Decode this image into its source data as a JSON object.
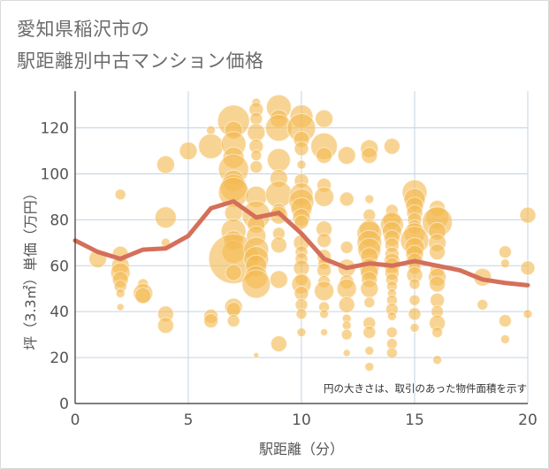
{
  "title_lines": [
    "愛知県稲沢市の",
    "駅距離別中古マンション価格"
  ],
  "chart_data": {
    "type": "scatter",
    "xlabel": "駅距離（分）",
    "ylabel": "坪（3.3㎡）単価（万円）",
    "xlim": [
      0,
      20
    ],
    "ylim": [
      0,
      136
    ],
    "xticks": [
      0,
      5,
      10,
      15,
      20
    ],
    "yticks": [
      0,
      20,
      40,
      60,
      80,
      100,
      120
    ],
    "grid": true,
    "note": "円の大きさは、取引のあった物件面積を示す",
    "colors": {
      "bubble": "#f3b953",
      "line": "#d4705a",
      "grid": "#c5d3e0"
    },
    "bubbles": [
      [
        1,
        63,
        10
      ],
      [
        2,
        91,
        6
      ],
      [
        2,
        65,
        9
      ],
      [
        2,
        60,
        10
      ],
      [
        2,
        57,
        11
      ],
      [
        2,
        54,
        9
      ],
      [
        2,
        51,
        7
      ],
      [
        2,
        48,
        5
      ],
      [
        2,
        42,
        4
      ],
      [
        3,
        52,
        6
      ],
      [
        3,
        48,
        11
      ],
      [
        3,
        47,
        9
      ],
      [
        4,
        104,
        10
      ],
      [
        4,
        81,
        12
      ],
      [
        4,
        70,
        5
      ],
      [
        4,
        39,
        9
      ],
      [
        4,
        34,
        9
      ],
      [
        5,
        110,
        10
      ],
      [
        6,
        119,
        5
      ],
      [
        6,
        112,
        14
      ],
      [
        6,
        38,
        8
      ],
      [
        6,
        36,
        8
      ],
      [
        7,
        123,
        18
      ],
      [
        7,
        119,
        10
      ],
      [
        7,
        113,
        14
      ],
      [
        7,
        107,
        12
      ],
      [
        7,
        102,
        17
      ],
      [
        7,
        97,
        12
      ],
      [
        7,
        94,
        15
      ],
      [
        7,
        92,
        17
      ],
      [
        7,
        83,
        10
      ],
      [
        7,
        75,
        14
      ],
      [
        7,
        71,
        11
      ],
      [
        7,
        66,
        13
      ],
      [
        7,
        63,
        28
      ],
      [
        7,
        57,
        9
      ],
      [
        7,
        42,
        10
      ],
      [
        7,
        41,
        8
      ],
      [
        7,
        36,
        7
      ],
      [
        8,
        131,
        5
      ],
      [
        8,
        128,
        8
      ],
      [
        8,
        124,
        7
      ],
      [
        8,
        118,
        10
      ],
      [
        8,
        112,
        8
      ],
      [
        8,
        108,
        6
      ],
      [
        8,
        103,
        7
      ],
      [
        8,
        90,
        12
      ],
      [
        8,
        82,
        16
      ],
      [
        8,
        78,
        10
      ],
      [
        8,
        73,
        11
      ],
      [
        8,
        67,
        14
      ],
      [
        8,
        63,
        14
      ],
      [
        8,
        60,
        12
      ],
      [
        8,
        55,
        13
      ],
      [
        8,
        52,
        16
      ],
      [
        8,
        21,
        3
      ],
      [
        9,
        129,
        14
      ],
      [
        9,
        124,
        10
      ],
      [
        9,
        120,
        15
      ],
      [
        9,
        106,
        13
      ],
      [
        9,
        98,
        10
      ],
      [
        9,
        91,
        15
      ],
      [
        9,
        84,
        8
      ],
      [
        9,
        82,
        10
      ],
      [
        9,
        74,
        7
      ],
      [
        9,
        69,
        9
      ],
      [
        9,
        54,
        10
      ],
      [
        9,
        26,
        9
      ],
      [
        10,
        125,
        13
      ],
      [
        10,
        120,
        16
      ],
      [
        10,
        115,
        9
      ],
      [
        10,
        111,
        8
      ],
      [
        10,
        104,
        5
      ],
      [
        10,
        97,
        8
      ],
      [
        10,
        91,
        13
      ],
      [
        10,
        88,
        14
      ],
      [
        10,
        85,
        12
      ],
      [
        10,
        81,
        10
      ],
      [
        10,
        79,
        8
      ],
      [
        10,
        70,
        9
      ],
      [
        10,
        66,
        7
      ],
      [
        10,
        63,
        7
      ],
      [
        10,
        59,
        9
      ],
      [
        10,
        54,
        7
      ],
      [
        10,
        52,
        11
      ],
      [
        10,
        48,
        8
      ],
      [
        10,
        43,
        7
      ],
      [
        10,
        39,
        6
      ],
      [
        10,
        31,
        5
      ],
      [
        11,
        124,
        10
      ],
      [
        11,
        112,
        15
      ],
      [
        11,
        108,
        9
      ],
      [
        11,
        95,
        8
      ],
      [
        11,
        90,
        11
      ],
      [
        11,
        76,
        9
      ],
      [
        11,
        71,
        8
      ],
      [
        11,
        64,
        8
      ],
      [
        11,
        61,
        7
      ],
      [
        11,
        58,
        8
      ],
      [
        11,
        53,
        7
      ],
      [
        11,
        49,
        11
      ],
      [
        11,
        42,
        6
      ],
      [
        11,
        39,
        5
      ],
      [
        11,
        31,
        4
      ],
      [
        12,
        108,
        10
      ],
      [
        12,
        89,
        8
      ],
      [
        12,
        68,
        7
      ],
      [
        12,
        59,
        10
      ],
      [
        12,
        53,
        8
      ],
      [
        12,
        50,
        11
      ],
      [
        12,
        43,
        9
      ],
      [
        12,
        37,
        5
      ],
      [
        12,
        34,
        5
      ],
      [
        12,
        30,
        6
      ],
      [
        12,
        22,
        4
      ],
      [
        13,
        111,
        10
      ],
      [
        13,
        108,
        9
      ],
      [
        13,
        89,
        5
      ],
      [
        13,
        82,
        7
      ],
      [
        13,
        76,
        11
      ],
      [
        13,
        74,
        14
      ],
      [
        13,
        70,
        14
      ],
      [
        13,
        67,
        13
      ],
      [
        13,
        64,
        10
      ],
      [
        13,
        59,
        11
      ],
      [
        13,
        57,
        10
      ],
      [
        13,
        54,
        9
      ],
      [
        13,
        50,
        10
      ],
      [
        13,
        44,
        6
      ],
      [
        13,
        35,
        7
      ],
      [
        13,
        31,
        7
      ],
      [
        13,
        23,
        5
      ],
      [
        13,
        16,
        5
      ],
      [
        14,
        112,
        9
      ],
      [
        14,
        84,
        7
      ],
      [
        14,
        80,
        10
      ],
      [
        14,
        78,
        13
      ],
      [
        14,
        75,
        11
      ],
      [
        14,
        72,
        9
      ],
      [
        14,
        69,
        8
      ],
      [
        14,
        65,
        8
      ],
      [
        14,
        62,
        9
      ],
      [
        14,
        60,
        9
      ],
      [
        14,
        57,
        8
      ],
      [
        14,
        54,
        7
      ],
      [
        14,
        51,
        6
      ],
      [
        14,
        48,
        5
      ],
      [
        14,
        45,
        6
      ],
      [
        14,
        41,
        7
      ],
      [
        14,
        38,
        5
      ],
      [
        14,
        31,
        6
      ],
      [
        14,
        26,
        6
      ],
      [
        14,
        22,
        6
      ],
      [
        15,
        92,
        14
      ],
      [
        15,
        89,
        12
      ],
      [
        15,
        86,
        10
      ],
      [
        15,
        83,
        9
      ],
      [
        15,
        80,
        8
      ],
      [
        15,
        77,
        8
      ],
      [
        15,
        74,
        12
      ],
      [
        15,
        71,
        16
      ],
      [
        15,
        68,
        11
      ],
      [
        15,
        65,
        10
      ],
      [
        15,
        62,
        9
      ],
      [
        15,
        59,
        7
      ],
      [
        15,
        56,
        9
      ],
      [
        15,
        52,
        6
      ],
      [
        15,
        45,
        6
      ],
      [
        15,
        39,
        7
      ],
      [
        15,
        33,
        5
      ],
      [
        16,
        85,
        9
      ],
      [
        16,
        81,
        13
      ],
      [
        16,
        79,
        17
      ],
      [
        16,
        75,
        10
      ],
      [
        16,
        70,
        10
      ],
      [
        16,
        66,
        9
      ],
      [
        16,
        58,
        8
      ],
      [
        16,
        55,
        10
      ],
      [
        16,
        52,
        9
      ],
      [
        16,
        45,
        8
      ],
      [
        16,
        40,
        7
      ],
      [
        16,
        35,
        9
      ],
      [
        16,
        31,
        6
      ],
      [
        16,
        19,
        5
      ],
      [
        18,
        55,
        10
      ],
      [
        18,
        43,
        6
      ],
      [
        19,
        66,
        7
      ],
      [
        19,
        61,
        5
      ],
      [
        19,
        36,
        7
      ],
      [
        19,
        28,
        5
      ],
      [
        20,
        82,
        9
      ],
      [
        20,
        59,
        8
      ],
      [
        20,
        39,
        5
      ]
    ],
    "trend": {
      "x": [
        0,
        1,
        2,
        3,
        4,
        5,
        6,
        7,
        8,
        9,
        10,
        11,
        12,
        13,
        14,
        15,
        16,
        17,
        18,
        19,
        20
      ],
      "y": [
        71,
        66,
        63,
        67,
        67.5,
        73,
        85,
        88,
        81,
        83,
        74,
        63,
        59,
        61,
        60,
        62,
        60,
        58,
        54,
        52.5,
        51.5
      ]
    }
  }
}
